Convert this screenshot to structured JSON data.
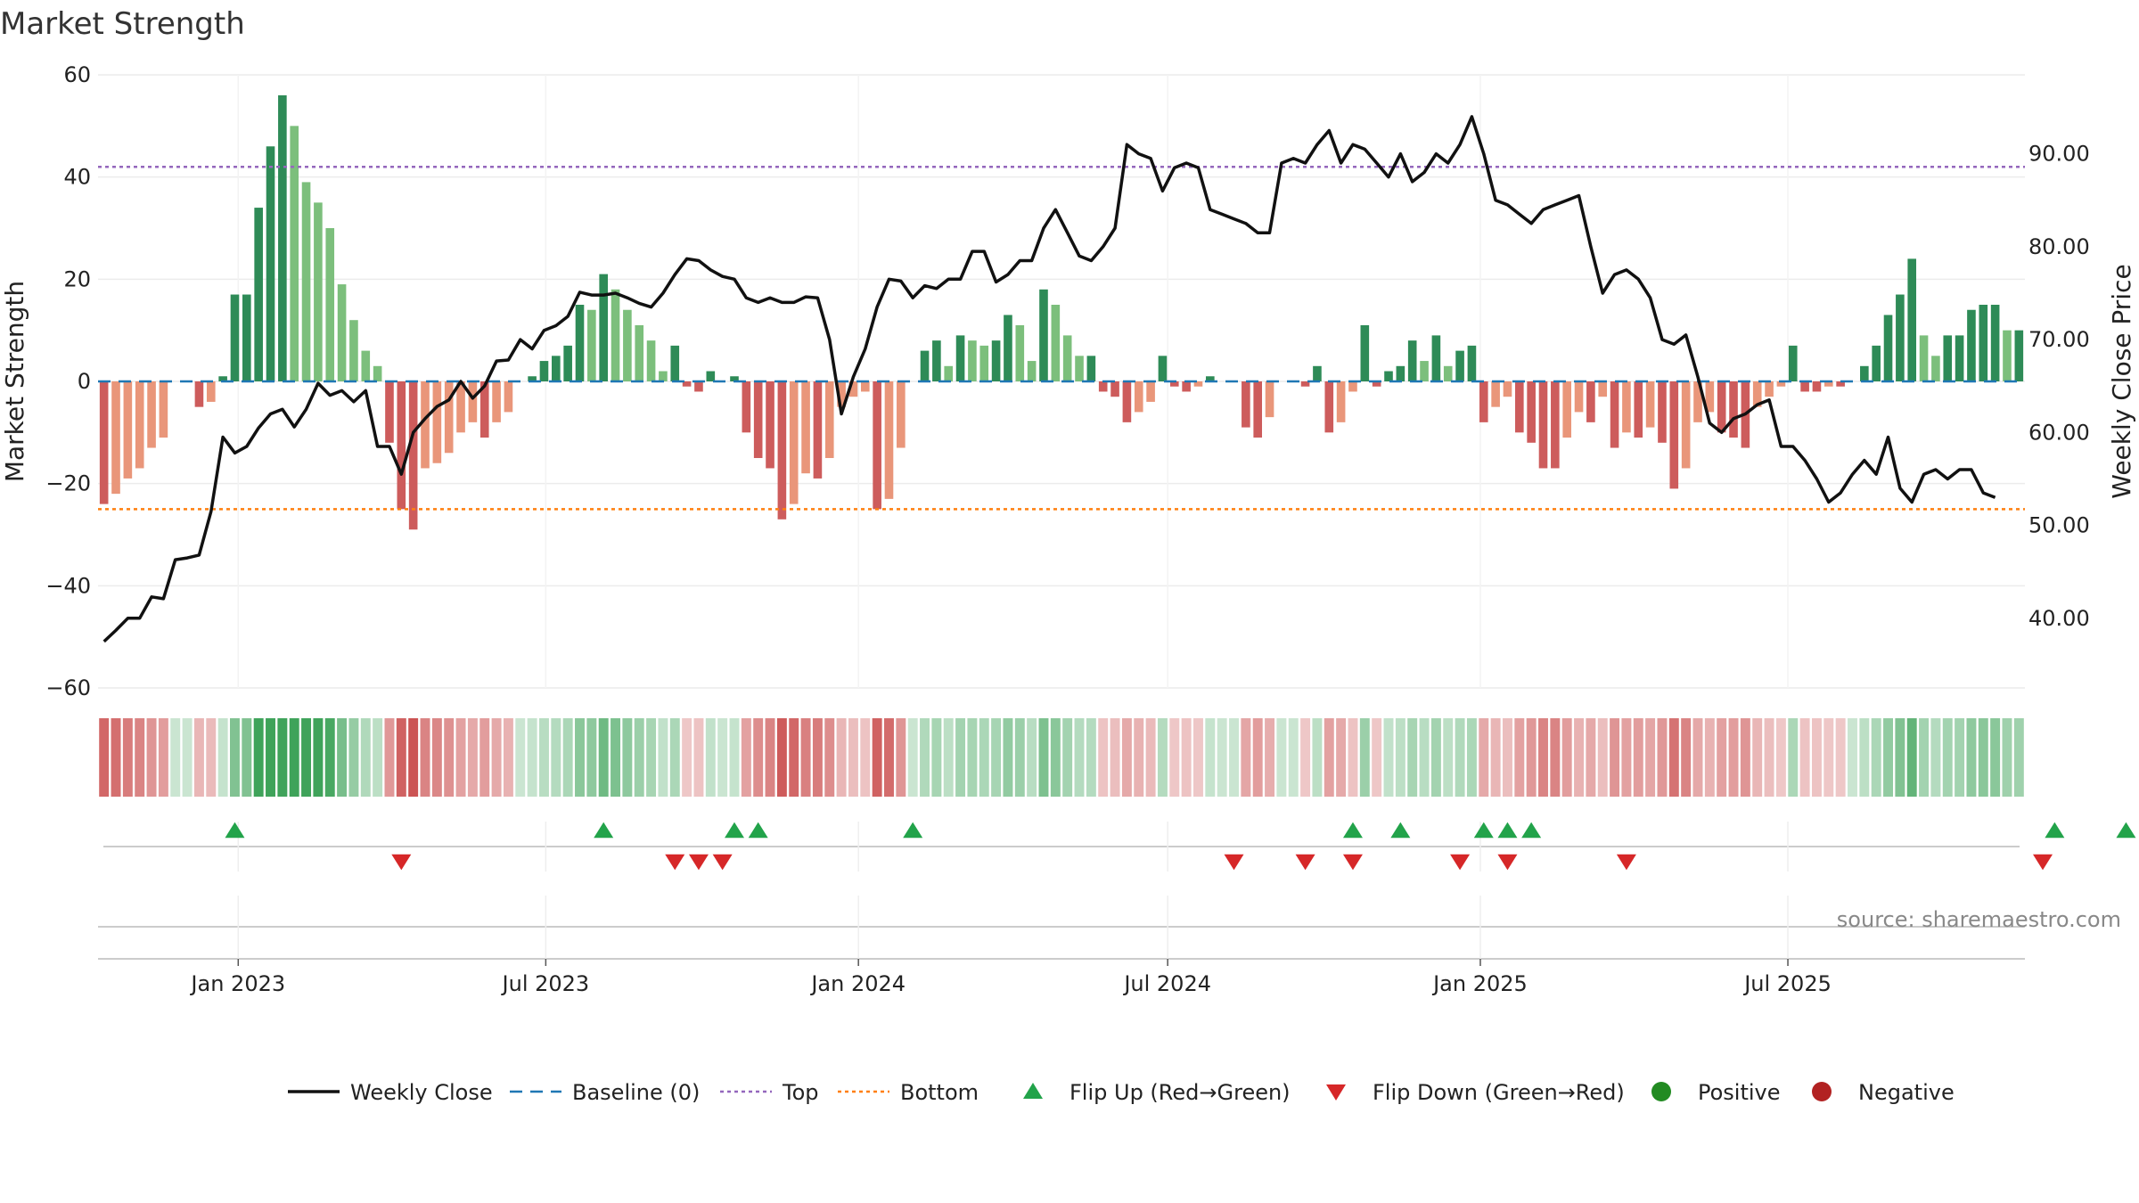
{
  "chart_data": {
    "type": "bar",
    "title": "Market Strength",
    "ylabel": "Market Strength",
    "y2label": "Weekly Close Price",
    "ylim": [
      -60,
      60
    ],
    "y2lim": [
      32.5,
      98.5
    ],
    "yticks": [
      "60",
      "40",
      "20",
      "0",
      "−20",
      "−40",
      "−60"
    ],
    "y2ticks": [
      "90.00",
      "80.00",
      "70.00",
      "60.00",
      "50.00",
      "40.00"
    ],
    "xticks": [
      "Jan 2023",
      "Jul 2023",
      "Jan 2024",
      "Jul 2024",
      "Jan 2025",
      "Jul 2025"
    ],
    "x_tick_dates": [
      "2023-01-01",
      "2023-07-01",
      "2024-01-01",
      "2024-07-01",
      "2025-01-01",
      "2025-07-01"
    ],
    "start_date": "2022-10-14",
    "week_step": 1,
    "top_line": 42,
    "bottom_line": -25,
    "strength": [
      -24,
      -22,
      -19,
      -17,
      -13,
      -11,
      0,
      0,
      -5,
      -4,
      1,
      17,
      17,
      34,
      46,
      56,
      50,
      39,
      35,
      30,
      19,
      12,
      6,
      3,
      -12,
      -25,
      -29,
      -17,
      -16,
      -14,
      -10,
      -8,
      -11,
      -8,
      -6,
      0,
      1,
      4,
      5,
      7,
      15,
      14,
      21,
      18,
      14,
      11,
      8,
      2,
      7,
      -1,
      -2,
      2,
      0,
      1,
      -10,
      -15,
      -17,
      -27,
      -24,
      -18,
      -19,
      -15,
      -5,
      -3,
      -2,
      -25,
      -23,
      -13,
      0,
      6,
      8,
      3,
      9,
      8,
      7,
      8,
      13,
      11,
      4,
      18,
      15,
      9,
      5,
      5,
      -2,
      -3,
      -8,
      -6,
      -4,
      5,
      -1,
      -2,
      -1,
      1,
      0,
      0,
      -9,
      -11,
      -7,
      0,
      0,
      -1,
      3,
      -10,
      -8,
      -2,
      11,
      -1,
      2,
      3,
      8,
      4,
      9,
      3,
      6,
      7,
      -8,
      -5,
      -3,
      -10,
      -12,
      -17,
      -17,
      -11,
      -6,
      -8,
      -3,
      -13,
      -10,
      -11,
      -9,
      -12,
      -21,
      -17,
      -8,
      -6,
      -10,
      -11,
      -13,
      -5,
      -3,
      -1,
      7,
      -2,
      -2,
      -1,
      -1,
      0,
      3,
      7,
      13,
      17,
      24,
      9,
      5,
      9,
      9,
      14,
      15,
      15,
      10,
      10
    ],
    "close": [
      37.5,
      38.7,
      40.0,
      40.0,
      42.3,
      42.1,
      46.3,
      46.5,
      46.8,
      51.5,
      59.5,
      57.8,
      58.5,
      60.5,
      62.0,
      62.5,
      60.6,
      62.5,
      65.3,
      64.0,
      64.5,
      63.3,
      64.5,
      58.5,
      58.5,
      55.5,
      60.0,
      61.5,
      62.8,
      63.5,
      65.5,
      63.7,
      65.0,
      67.7,
      67.8,
      70.0,
      69.0,
      71.0,
      71.5,
      72.5,
      75.1,
      74.8,
      74.8,
      75.0,
      74.5,
      73.9,
      73.5,
      75.0,
      77.0,
      78.7,
      78.5,
      77.5,
      76.8,
      76.5,
      74.5,
      74.0,
      74.5,
      74.0,
      74.0,
      74.6,
      74.5,
      70.0,
      62.0,
      66.0,
      69.0,
      73.5,
      76.5,
      76.3,
      74.5,
      75.8,
      75.5,
      76.5,
      76.5,
      79.5,
      79.5,
      76.2,
      77.0,
      78.5,
      78.5,
      82.0,
      84.0,
      81.5,
      79.0,
      78.5,
      80.0,
      82.0,
      91.0,
      90.0,
      89.5,
      86.0,
      88.5,
      89.0,
      88.5,
      84.0,
      83.5,
      83.0,
      82.5,
      81.5,
      81.5,
      89.0,
      89.5,
      89.0,
      91.0,
      92.5,
      89.0,
      91.0,
      90.5,
      89.0,
      87.5,
      90.0,
      87.0,
      88.0,
      90.0,
      89.0,
      91.0,
      94.0,
      90.0,
      85.0,
      84.5,
      83.5,
      82.5,
      84.0,
      84.5,
      85.0,
      85.5,
      80.0,
      75.0,
      77.0,
      77.5,
      76.5,
      74.5,
      70.0,
      69.5,
      70.5,
      66.0,
      61.0,
      60.0,
      61.5,
      62.0,
      63.0,
      63.5,
      58.5,
      58.5,
      57.0,
      55.0,
      52.5,
      53.5,
      55.5,
      57.0,
      55.5,
      59.5,
      54.0,
      52.5,
      55.5,
      56.0,
      55.0,
      56.0,
      56.0,
      53.5,
      53.0
    ],
    "flip_up": [
      11,
      42,
      53,
      55,
      68,
      105,
      109,
      116,
      118,
      120,
      164,
      170
    ],
    "flip_down": [
      25,
      48,
      50,
      52,
      95,
      101,
      105,
      114,
      118,
      128,
      163
    ],
    "legend": [
      "Weekly Close",
      "Baseline (0)",
      "Top",
      "Bottom",
      "Flip Up (Red→Green)",
      "Flip Down (Green→Red)",
      "Positive",
      "Negative"
    ],
    "source": "source: sharemaestro.com",
    "colors": {
      "pos_strong": "#2e8b57",
      "pos_weak": "#7cbf7c",
      "neg_strong": "#cd5c5c",
      "neg_weak": "#e9967a",
      "close": "#111111",
      "baseline": "#1f77b4",
      "top": "#9467bd",
      "bottom": "#ff7f0e",
      "flip_up": "#22a34a",
      "flip_down": "#d62728",
      "positive_dot": "#228b22",
      "negative_dot": "#b22222"
    }
  }
}
